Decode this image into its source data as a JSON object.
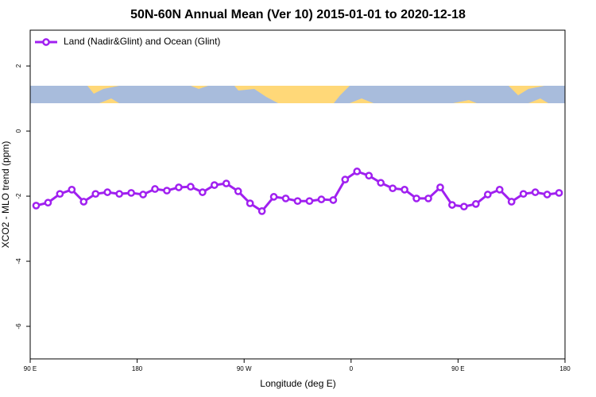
{
  "chart_data": {
    "type": "line",
    "title": "50N-60N Annual Mean (Ver 10)   2015-01-01 to 2020-12-18",
    "x_label": "Longitude (deg E)",
    "y_label": "XCO2 - MLO trend (ppm)",
    "xlim": [
      90,
      540
    ],
    "ylim": [
      -7,
      3.1
    ],
    "xticks": [
      {
        "value": 90,
        "label": "90 E"
      },
      {
        "value": 180,
        "label": "180"
      },
      {
        "value": 270,
        "label": "90 W"
      },
      {
        "value": 360,
        "label": "0"
      },
      {
        "value": 450,
        "label": "90 E"
      },
      {
        "value": 540,
        "label": "180"
      }
    ],
    "yticks": [
      -6,
      -4,
      -2,
      0,
      2
    ],
    "legend": "top-left",
    "x": [
      95,
      105,
      115,
      125,
      135,
      145,
      155,
      165,
      175,
      185,
      195,
      205,
      215,
      225,
      235,
      245,
      255,
      265,
      275,
      285,
      295,
      305,
      315,
      325,
      335,
      345,
      355,
      365,
      375,
      385,
      395,
      405,
      415,
      425,
      435,
      445,
      455,
      465,
      475,
      485,
      495,
      505,
      515,
      525,
      535
    ],
    "series": [
      {
        "name": "Land (Nadir&Glint) and Ocean (Glint)",
        "color": "#a020f0",
        "values": [
          -2.29,
          -2.2,
          -1.93,
          -1.8,
          -2.17,
          -1.93,
          -1.88,
          -1.93,
          -1.9,
          -1.95,
          -1.78,
          -1.83,
          -1.73,
          -1.71,
          -1.88,
          -1.66,
          -1.61,
          -1.85,
          -2.22,
          -2.46,
          -2.02,
          -2.07,
          -2.15,
          -2.15,
          -2.1,
          -2.12,
          -1.49,
          -1.24,
          -1.37,
          -1.59,
          -1.76,
          -1.8,
          -2.07,
          -2.07,
          -1.73,
          -2.27,
          -2.32,
          -2.24,
          -1.95,
          -1.8,
          -2.17,
          -1.93,
          -1.88,
          -1.95,
          -1.9
        ]
      }
    ]
  }
}
